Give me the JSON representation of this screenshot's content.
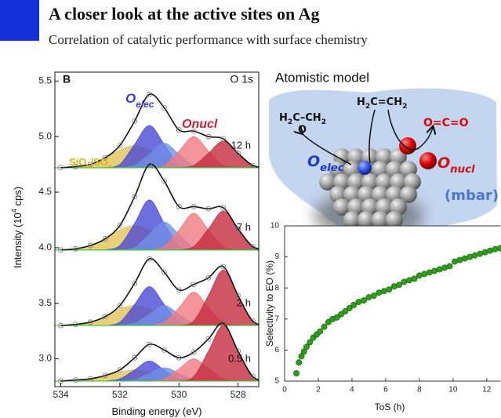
{
  "header": {
    "title": "A closer look at the active sites on Ag",
    "subtitle": "Correlation of catalytic performance with surface chemistry"
  },
  "model": {
    "title": "Atomistic model",
    "epoxide": [
      {
        "text": "H"
      },
      {
        "text": "2",
        "s": "sub"
      },
      {
        "text": "C–CH"
      },
      {
        "text": "2",
        "s": "sub"
      }
    ],
    "epoxide_o": "O",
    "ethylene": [
      {
        "text": "H"
      },
      {
        "text": "2",
        "s": "sub"
      },
      {
        "text": "C=CH"
      },
      {
        "text": "2",
        "s": "sub"
      }
    ],
    "co2": "O=C=O",
    "o_elec": [
      {
        "text": "O"
      },
      {
        "text": "elec",
        "s": "sub"
      }
    ],
    "o_nucl": [
      {
        "text": "O"
      },
      {
        "text": "nucl",
        "s": "sub"
      }
    ],
    "pressure": "(mbar)"
  },
  "chart_data": [
    {
      "type": "line",
      "panel_label": "B",
      "core_level": "O 1s",
      "x_label": [
        {
          "text": "Binding energy (eV)"
        }
      ],
      "y_label": [
        {
          "text": "Intensity (10"
        },
        {
          "text": "4",
          "s": "sup"
        },
        {
          "text": " cps)"
        }
      ],
      "annotations": [
        {
          "color": "#3a3ac8",
          "segments": [
            {
              "text": "O"
            },
            {
              "text": "elec",
              "s": "sub"
            }
          ]
        },
        {
          "color": "#c8243c",
          "segments": [
            {
              "text": "Onucl"
            }
          ]
        },
        {
          "color": "#d6b41e",
          "segments": [
            {
              "text": "SiO"
            },
            {
              "text": "x",
              "s": "sub"
            },
            {
              "text": "/SO"
            },
            {
              "text": "x",
              "s": "sub"
            }
          ]
        }
      ],
      "xlim": [
        534.2,
        527.3
      ],
      "ylim": [
        2.75,
        5.58
      ],
      "xticks": [
        534,
        532,
        530,
        528
      ],
      "yticks": [
        {
          "value": 3,
          "label": "3.0"
        },
        3.5,
        {
          "value": 4,
          "label": "4.0"
        },
        4.5,
        {
          "value": 5,
          "label": "5.0"
        },
        5.5
      ],
      "x": [
        534,
        533.5,
        533,
        532.5,
        532,
        531.5,
        531,
        530.5,
        530,
        529.5,
        529,
        528.5,
        528,
        527.5,
        527
      ],
      "component_colors": [
        "#e2c35a",
        "#4a4ad6",
        "#7090e6",
        "#f07a82",
        "#c42a3e"
      ],
      "spectra": [
        {
          "label": "12 h",
          "baseline": 4.72,
          "envelope": [
            4.72,
            4.73,
            4.75,
            4.81,
            4.92,
            5.14,
            5.38,
            5.26,
            5.06,
            5.05,
            5.0,
            4.98,
            4.85,
            4.74,
            4.72
          ],
          "components": [
            {
              "values": [
                4.72,
                4.73,
                4.75,
                4.81,
                4.88,
                4.92,
                4.88,
                4.81,
                4.75,
                4.73,
                4.72,
                null,
                null,
                null,
                null
              ]
            },
            {
              "values": [
                null,
                null,
                null,
                4.72,
                4.75,
                4.93,
                5.1,
                4.93,
                4.75,
                4.72,
                null,
                null,
                null,
                null,
                null
              ]
            },
            {
              "values": [
                null,
                null,
                null,
                null,
                4.72,
                4.74,
                4.84,
                4.94,
                4.84,
                4.74,
                4.72,
                null,
                null,
                null,
                null
              ]
            },
            {
              "values": [
                null,
                null,
                null,
                null,
                null,
                null,
                4.72,
                4.74,
                4.87,
                5.0,
                4.87,
                4.74,
                4.72,
                null,
                null
              ]
            },
            {
              "values": [
                null,
                null,
                null,
                null,
                null,
                null,
                null,
                null,
                4.72,
                4.74,
                4.85,
                4.96,
                4.85,
                4.74,
                4.72
              ]
            }
          ]
        },
        {
          "label": "7 h",
          "baseline": 3.98,
          "envelope": [
            3.98,
            3.99,
            4.02,
            4.08,
            4.2,
            4.46,
            4.75,
            4.6,
            4.37,
            4.37,
            4.35,
            4.36,
            4.17,
            4.01,
            3.98
          ],
          "components": [
            {
              "values": [
                3.98,
                3.99,
                4.02,
                4.08,
                4.16,
                4.2,
                4.16,
                4.08,
                4.02,
                3.99,
                3.98,
                null,
                null,
                null,
                null
              ]
            },
            {
              "values": [
                null,
                null,
                null,
                3.98,
                4.02,
                4.22,
                4.43,
                4.22,
                4.02,
                3.98,
                null,
                null,
                null,
                null,
                null
              ]
            },
            {
              "values": [
                null,
                null,
                null,
                null,
                3.98,
                4.0,
                4.12,
                4.23,
                4.12,
                4.0,
                3.98,
                null,
                null,
                null,
                null
              ]
            },
            {
              "values": [
                null,
                null,
                null,
                null,
                null,
                null,
                3.98,
                4.01,
                4.16,
                4.31,
                4.16,
                4.01,
                3.98,
                null,
                null
              ]
            },
            {
              "values": [
                null,
                null,
                null,
                null,
                null,
                null,
                null,
                null,
                3.98,
                4.01,
                4.17,
                4.33,
                4.17,
                4.01,
                3.98
              ]
            }
          ]
        },
        {
          "label": "2 h",
          "baseline": 3.3,
          "envelope": [
            3.3,
            3.31,
            3.33,
            3.38,
            3.48,
            3.68,
            3.9,
            3.78,
            3.62,
            3.67,
            3.73,
            3.83,
            3.57,
            3.34,
            3.3
          ],
          "components": [
            {
              "values": [
                3.3,
                3.31,
                3.33,
                3.38,
                3.45,
                3.48,
                3.45,
                3.38,
                3.33,
                3.31,
                3.3,
                null,
                null,
                null,
                null
              ]
            },
            {
              "values": [
                null,
                null,
                null,
                3.3,
                3.33,
                3.49,
                3.65,
                3.49,
                3.33,
                3.3,
                null,
                null,
                null,
                null,
                null
              ]
            },
            {
              "values": [
                null,
                null,
                null,
                null,
                3.3,
                3.32,
                3.4,
                3.48,
                3.4,
                3.32,
                3.3,
                null,
                null,
                null,
                null
              ]
            },
            {
              "values": [
                null,
                null,
                null,
                null,
                null,
                null,
                3.3,
                3.33,
                3.46,
                3.6,
                3.46,
                3.33,
                3.3,
                null,
                null
              ]
            },
            {
              "values": [
                null,
                null,
                null,
                null,
                null,
                null,
                null,
                null,
                3.3,
                3.34,
                3.57,
                3.8,
                3.57,
                3.34,
                3.3
              ]
            }
          ]
        },
        {
          "label": "0.5 h",
          "baseline": 2.8,
          "envelope": [
            2.8,
            2.81,
            2.82,
            2.85,
            2.9,
            3.01,
            3.13,
            3.08,
            3.01,
            3.06,
            3.18,
            3.32,
            3.07,
            2.84,
            2.8
          ],
          "components": [
            {
              "values": [
                2.8,
                2.81,
                2.82,
                2.85,
                2.88,
                2.9,
                2.88,
                2.85,
                2.82,
                2.81,
                2.8,
                null,
                null,
                null,
                null
              ]
            },
            {
              "values": [
                null,
                null,
                null,
                2.8,
                2.82,
                2.9,
                2.98,
                2.9,
                2.82,
                2.8,
                null,
                null,
                null,
                null,
                null
              ]
            },
            {
              "values": [
                null,
                null,
                null,
                null,
                2.8,
                2.81,
                2.87,
                2.92,
                2.87,
                2.81,
                2.8,
                null,
                null,
                null,
                null
              ]
            },
            {
              "values": [
                null,
                null,
                null,
                null,
                null,
                null,
                2.8,
                2.82,
                2.91,
                3.0,
                2.91,
                2.82,
                2.8,
                null,
                null
              ]
            },
            {
              "values": [
                null,
                null,
                null,
                null,
                null,
                null,
                null,
                null,
                2.8,
                2.84,
                3.07,
                3.3,
                3.07,
                2.84,
                2.8
              ]
            }
          ]
        }
      ]
    },
    {
      "type": "scatter",
      "color": "#2e9e1c",
      "x_label": [
        {
          "text": "ToS (h)"
        }
      ],
      "y_label": [
        {
          "text": "Selectivity to EO (%)"
        }
      ],
      "xlim": [
        0,
        12.8
      ],
      "ylim": [
        5,
        10
      ],
      "xticks": [
        0,
        2,
        4,
        6,
        8,
        10,
        12
      ],
      "yticks": [
        5,
        6,
        7,
        8,
        9,
        10
      ],
      "x": [
        0.7,
        0.85,
        1.0,
        1.15,
        1.3,
        1.5,
        1.7,
        1.9,
        2.1,
        2.35,
        2.6,
        2.85,
        3.1,
        3.35,
        3.6,
        3.85,
        4.1,
        4.4,
        4.7,
        5.0,
        5.3,
        5.6,
        5.9,
        6.2,
        6.5,
        6.8,
        7.1,
        7.4,
        7.7,
        8.0,
        8.3,
        8.6,
        8.9,
        9.2,
        9.5,
        9.8,
        10.1,
        10.4,
        10.7,
        11.0,
        11.3,
        11.6,
        11.9,
        12.2,
        12.5,
        12.8
      ],
      "values": [
        5.25,
        5.6,
        5.8,
        5.95,
        6.1,
        6.25,
        6.4,
        6.5,
        6.6,
        6.75,
        6.9,
        7.0,
        7.05,
        7.15,
        7.25,
        7.35,
        7.45,
        7.55,
        7.6,
        7.7,
        7.75,
        7.85,
        7.9,
        7.95,
        8.05,
        8.1,
        8.2,
        8.25,
        8.3,
        8.4,
        8.45,
        8.5,
        8.55,
        8.6,
        8.65,
        8.7,
        8.85,
        8.9,
        8.95,
        9.0,
        9.05,
        9.1,
        9.15,
        9.2,
        9.25,
        9.28
      ]
    }
  ]
}
